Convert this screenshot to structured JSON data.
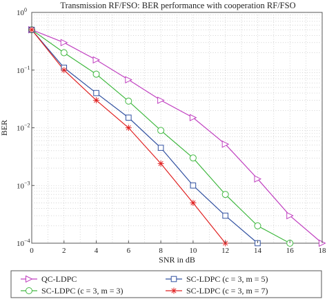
{
  "chart_data": {
    "type": "line",
    "title": "Transmission RF/FSO: BER performance with cooperation RF/FSO",
    "xlabel": "SNR in dB",
    "ylabel": "BER",
    "xlim": [
      0,
      18
    ],
    "ylim": [
      0.0001,
      1
    ],
    "yscale": "log",
    "grid": true,
    "x_ticks": [
      0,
      2,
      4,
      6,
      8,
      10,
      12,
      14,
      16,
      18
    ],
    "y_ticks": [
      {
        "value": 1,
        "base": "10",
        "exp": "0"
      },
      {
        "value": 0.1,
        "base": "10",
        "exp": "−1"
      },
      {
        "value": 0.01,
        "base": "10",
        "exp": "−2"
      },
      {
        "value": 0.001,
        "base": "10",
        "exp": "−3"
      },
      {
        "value": 0.0001,
        "base": "10",
        "exp": "−4"
      }
    ],
    "legend_position": "bottom",
    "series": [
      {
        "name": "QC-LDPC",
        "color": "#c040c0",
        "marker": "triangle-right",
        "x": [
          0,
          2,
          4,
          6,
          8,
          10,
          12,
          14,
          16,
          18
        ],
        "y": [
          0.5,
          0.3,
          0.15,
          0.068,
          0.03,
          0.015,
          0.0052,
          0.0013,
          0.0003,
          0.0001
        ]
      },
      {
        "name": "SC-LDPC (c = 3, m = 3)",
        "color": "#40b840",
        "marker": "circle",
        "x": [
          0,
          2,
          4,
          6,
          8,
          10,
          12,
          14,
          16
        ],
        "y": [
          0.5,
          0.2,
          0.085,
          0.029,
          0.009,
          0.003,
          0.0007,
          0.0002,
          0.0001
        ]
      },
      {
        "name": "SC-LDPC (c = 3, m = 5)",
        "color": "#3050a0",
        "marker": "square",
        "x": [
          0,
          2,
          4,
          6,
          8,
          10,
          12,
          14
        ],
        "y": [
          0.5,
          0.11,
          0.04,
          0.015,
          0.0045,
          0.001,
          0.0003,
          0.0001
        ]
      },
      {
        "name": "SC-LDPC (c = 3, m = 7)",
        "color": "#e02020",
        "marker": "asterisk",
        "x": [
          0,
          2,
          4,
          6,
          8,
          10,
          12
        ],
        "y": [
          0.5,
          0.1,
          0.03,
          0.01,
          0.0024,
          0.0005,
          0.0001
        ]
      }
    ]
  }
}
